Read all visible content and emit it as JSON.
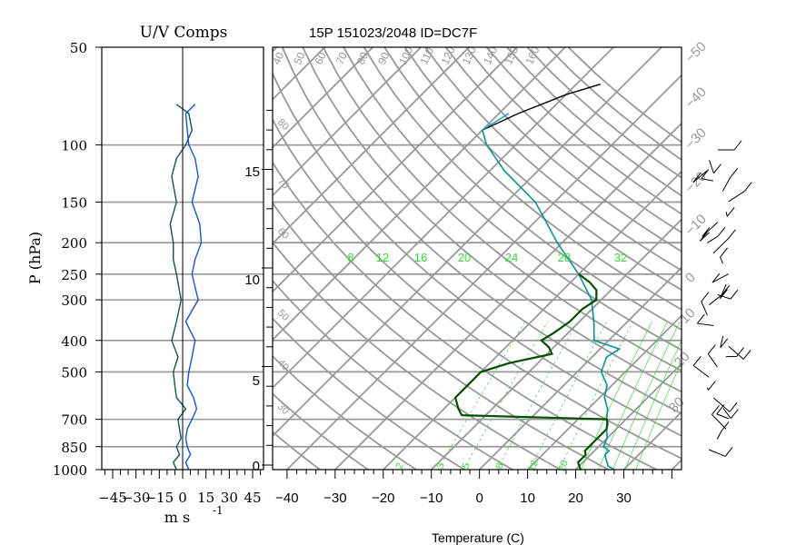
{
  "chart_data": [
    {
      "type": "line",
      "title": "U/V Comps",
      "ylabel": "P (hPa)",
      "xlabel": "m s",
      "xlabel_superscript": "-1",
      "ylim": [
        1000,
        50
      ],
      "xlim": [
        -52,
        52
      ],
      "xticks": [
        "-45",
        "-30",
        "-15",
        "0",
        "15",
        "30",
        "45"
      ],
      "yticks": [
        "50",
        "100",
        "150",
        "200",
        "250",
        "300",
        "400",
        "500",
        "700",
        "850",
        "1000"
      ],
      "pressure_levels": [
        1000,
        950,
        900,
        850,
        800,
        750,
        700,
        650,
        600,
        550,
        500,
        450,
        400,
        350,
        300,
        250,
        225,
        200,
        175,
        150,
        125,
        110,
        100,
        90,
        80,
        75
      ],
      "series": [
        {
          "color": "#000000",
          "values": [
            -4,
            -6,
            -2,
            -4,
            -1,
            -2,
            -3,
            2,
            -4,
            -5,
            -6,
            -3,
            -7,
            -4,
            -1,
            -4,
            -6,
            -6,
            -8,
            -4,
            -7,
            -4,
            2,
            6,
            4,
            -4
          ]
        },
        {
          "color": "#0000ff",
          "values": [
            4,
            2,
            5,
            3,
            2,
            3,
            6,
            9,
            7,
            3,
            4,
            6,
            8,
            2,
            10,
            6,
            8,
            12,
            11,
            6,
            10,
            8,
            4,
            3,
            2,
            8
          ]
        }
      ],
      "grid": true
    },
    {
      "type": "line",
      "title": "15P 151023/2048 ID=DC7F",
      "xlabel": "Temperature (C)",
      "xticks": [
        "-40",
        "-30",
        "-20",
        "-10",
        "0",
        "10",
        "20",
        "30"
      ],
      "xlim": [
        -43,
        42
      ],
      "height_labels": [
        "0",
        "5",
        "10",
        "15"
      ],
      "height_km": [
        0,
        5,
        10,
        15
      ],
      "ylim": [
        1000,
        50
      ],
      "isotherm_spacing_C": 10,
      "theta_labels": [
        "40",
        "50",
        "60",
        "70",
        "80",
        "90",
        "100",
        "110",
        "120",
        "130",
        "140",
        "150",
        "160"
      ],
      "mixing_ratio_labels": [
        "8",
        "12",
        "16",
        "20",
        "24",
        "28",
        "32"
      ],
      "mixing_ratio_bottom_labels": [
        "2",
        "3",
        "5",
        "8",
        "12",
        "20"
      ],
      "saturated_adiabat_left_labels": [
        "80",
        "70",
        "60",
        "50",
        "40",
        "30"
      ],
      "temperature_right_labels": [
        "-50",
        "-40",
        "-30",
        "-20",
        "-10",
        "0",
        "10",
        "20",
        "30"
      ],
      "series": [
        {
          "name": "",
          "color": "#000000",
          "profile": "temperature",
          "points": [
            [
              1000,
              28
            ],
            [
              975,
              26
            ],
            [
              950,
              25
            ],
            [
              925,
              24
            ],
            [
              900,
              23
            ],
            [
              875,
              23
            ],
            [
              850,
              21
            ],
            [
              800,
              20
            ],
            [
              750,
              18
            ],
            [
              700,
              16
            ],
            [
              650,
              14
            ],
            [
              600,
              11
            ],
            [
              550,
              9
            ],
            [
              500,
              5
            ],
            [
              450,
              3
            ],
            [
              425,
              4
            ],
            [
              400,
              -3
            ],
            [
              350,
              -7
            ],
            [
              300,
              -12
            ],
            [
              250,
              -20
            ],
            [
              200,
              -31
            ],
            [
              150,
              -44
            ],
            [
              120,
              -57
            ],
            [
              100,
              -66
            ],
            [
              90,
              -70
            ],
            [
              80,
              -66
            ],
            [
              70,
              -60
            ],
            [
              65,
              -55
            ]
          ]
        },
        {
          "name": "",
          "color": "#00a0b0",
          "profile": "temperature (overlay)",
          "points": [
            [
              1000,
              28
            ],
            [
              975,
              26
            ],
            [
              950,
              25
            ],
            [
              925,
              24
            ],
            [
              900,
              23
            ],
            [
              875,
              23
            ],
            [
              850,
              21
            ],
            [
              800,
              20
            ],
            [
              750,
              18
            ],
            [
              700,
              16
            ],
            [
              650,
              14
            ],
            [
              600,
              11
            ],
            [
              550,
              9
            ],
            [
              500,
              5
            ],
            [
              450,
              3
            ],
            [
              425,
              4
            ],
            [
              400,
              -3
            ],
            [
              350,
              -7
            ],
            [
              300,
              -12
            ],
            [
              250,
              -20
            ],
            [
              200,
              -31
            ],
            [
              150,
              -44
            ],
            [
              120,
              -57
            ],
            [
              100,
              -66
            ],
            [
              90,
              -70
            ],
            [
              80,
              -68
            ]
          ]
        },
        {
          "name": "",
          "color": "#005000",
          "profile": "dewpoint",
          "points": [
            [
              1000,
              21
            ],
            [
              975,
              20
            ],
            [
              950,
              19
            ],
            [
              925,
              19
            ],
            [
              900,
              19
            ],
            [
              875,
              18
            ],
            [
              850,
              18
            ],
            [
              800,
              18
            ],
            [
              750,
              18
            ],
            [
              720,
              17
            ],
            [
              700,
              16
            ],
            [
              680,
              -15
            ],
            [
              650,
              -17
            ],
            [
              600,
              -20
            ],
            [
              550,
              -20
            ],
            [
              500,
              -20
            ],
            [
              470,
              -16
            ],
            [
              440,
              -9
            ],
            [
              420,
              -11
            ],
            [
              400,
              -14
            ],
            [
              380,
              -13
            ],
            [
              350,
              -12
            ],
            [
              320,
              -12
            ],
            [
              300,
              -11
            ],
            [
              280,
              -13
            ],
            [
              265,
              -16
            ],
            [
              250,
              -20
            ]
          ]
        }
      ],
      "grid": true
    },
    {
      "type": "other",
      "description_free": true,
      "wind_barb_count": 30
    }
  ]
}
